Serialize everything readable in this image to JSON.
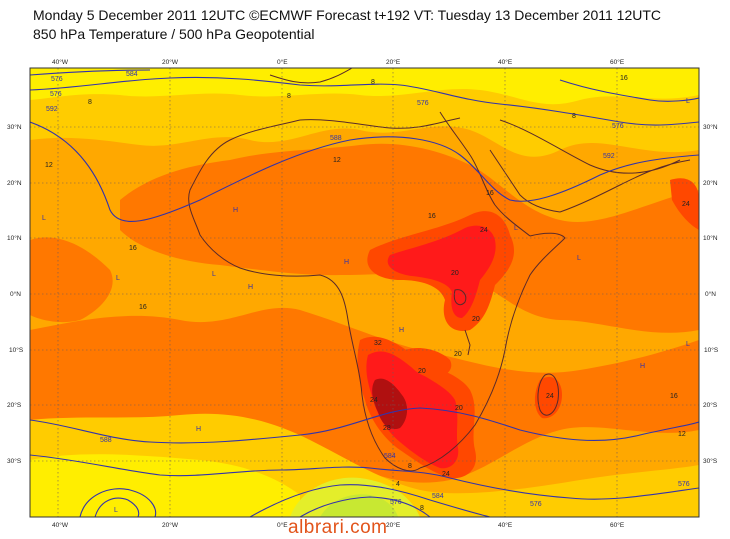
{
  "title_line1": "Monday 5 December 2011 12UTC ©ECMWF Forecast t+192 VT: Tuesday 13 December 2011 12UTC",
  "title_line2": "850 hPa Temperature / 500 hPa Geopotential",
  "watermark": "albrari.com",
  "longitude_labels": [
    "40°W",
    "20°W",
    "0°E",
    "20°E",
    "40°E",
    "60°E"
  ],
  "latitude_labels": [
    "30°N",
    "20°N",
    "10°N",
    "0°N",
    "10°S",
    "20°S",
    "30°S"
  ],
  "temperature_labels": [
    "8",
    "8",
    "8",
    "8",
    "8",
    "12",
    "12",
    "12",
    "16",
    "16",
    "16",
    "16",
    "16",
    "20",
    "20",
    "20",
    "20",
    "20",
    "24",
    "24",
    "24",
    "24",
    "24",
    "28",
    "28",
    "32",
    "32",
    "8",
    "12",
    "16",
    "4",
    "4",
    "8"
  ],
  "geopotential_labels": [
    "576",
    "584",
    "576",
    "592",
    "576",
    "576",
    "588",
    "592",
    "588",
    "584",
    "576",
    "576",
    "576",
    "584"
  ],
  "pressure_centres": [
    "H",
    "H",
    "H",
    "H",
    "H",
    "H",
    "L",
    "L",
    "L",
    "L",
    "L",
    "L",
    "L",
    "L"
  ],
  "colors": {
    "cold_green": "#c8e832",
    "cool_yellowgreen": "#e4ee2a",
    "yellow": "#ffee00",
    "yellow_orange": "#ffcc00",
    "orange_light": "#ffa800",
    "orange": "#ff7800",
    "red_orange": "#ff4800",
    "red": "#ff1a1a",
    "dark_red": "#b01010",
    "contour": "#3333aa",
    "coast": "#5a2a2a",
    "grid": "#6e5a5a"
  }
}
